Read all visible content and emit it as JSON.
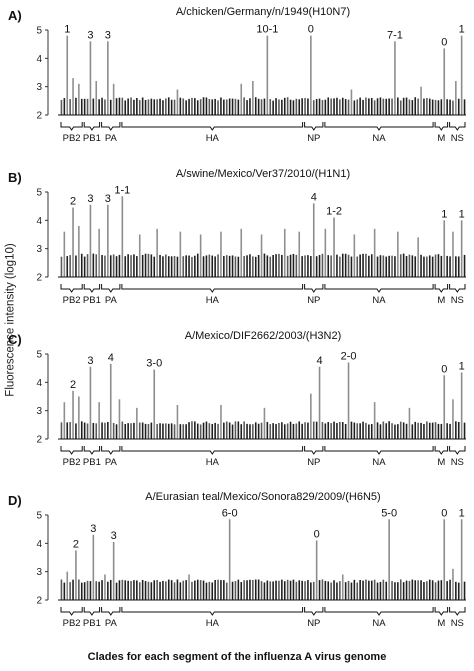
{
  "figure": {
    "ylabel": "Fluorescence intensity (log10)",
    "xlabel": "Clades for each segment of the influenza A virus genome"
  },
  "chart_data": [
    {
      "type": "bar",
      "panel": "A)",
      "title": "A/chicken/Germany/n/1949(H10N7)",
      "ylim": [
        2,
        5
      ],
      "yticks": [
        2,
        3,
        4,
        5
      ],
      "n_bars": 140,
      "baseline_level": 2.55,
      "segments": [
        {
          "label": "PB2",
          "start": 0,
          "end": 8
        },
        {
          "label": "PB1",
          "start": 8,
          "end": 14
        },
        {
          "label": "PA",
          "start": 14,
          "end": 21
        },
        {
          "label": "HA",
          "start": 21,
          "end": 84
        },
        {
          "label": "NP",
          "start": 84,
          "end": 91
        },
        {
          "label": "NA",
          "start": 91,
          "end": 129
        },
        {
          "label": "M",
          "start": 129,
          "end": 134
        },
        {
          "label": "NS",
          "start": 134,
          "end": 140
        }
      ],
      "peaks": [
        {
          "index": 2,
          "value": 4.8,
          "label": "1"
        },
        {
          "index": 10,
          "value": 4.6,
          "label": "3"
        },
        {
          "index": 16,
          "value": 4.6,
          "label": "3"
        },
        {
          "index": 71,
          "value": 4.8,
          "label": "10-1"
        },
        {
          "index": 86,
          "value": 4.8,
          "label": "0"
        },
        {
          "index": 115,
          "value": 4.6,
          "label": "7-1"
        },
        {
          "index": 132,
          "value": 4.35,
          "label": "0"
        },
        {
          "index": 138,
          "value": 4.8,
          "label": "1"
        }
      ],
      "secondary_bars": [
        {
          "index": 4,
          "value": 3.3
        },
        {
          "index": 6,
          "value": 3.1
        },
        {
          "index": 12,
          "value": 3.2
        },
        {
          "index": 18,
          "value": 3.1
        },
        {
          "index": 40,
          "value": 2.9
        },
        {
          "index": 62,
          "value": 3.1
        },
        {
          "index": 66,
          "value": 3.2
        },
        {
          "index": 100,
          "value": 2.9
        },
        {
          "index": 124,
          "value": 3.0
        },
        {
          "index": 136,
          "value": 3.2
        }
      ]
    },
    {
      "type": "bar",
      "panel": "B)",
      "title": "A/swine/Mexico/Ver37/2010/(H1N1)",
      "ylim": [
        2,
        5
      ],
      "yticks": [
        2,
        3,
        4,
        5
      ],
      "n_bars": 140,
      "baseline_level": 2.75,
      "segments": [
        {
          "label": "PB2",
          "start": 0,
          "end": 8
        },
        {
          "label": "PB1",
          "start": 8,
          "end": 14
        },
        {
          "label": "PA",
          "start": 14,
          "end": 21
        },
        {
          "label": "HA",
          "start": 21,
          "end": 84
        },
        {
          "label": "NP",
          "start": 84,
          "end": 91
        },
        {
          "label": "NA",
          "start": 91,
          "end": 129
        },
        {
          "label": "M",
          "start": 129,
          "end": 134
        },
        {
          "label": "NS",
          "start": 134,
          "end": 140
        }
      ],
      "peaks": [
        {
          "index": 4,
          "value": 4.45,
          "label": "2"
        },
        {
          "index": 10,
          "value": 4.55,
          "label": "3"
        },
        {
          "index": 16,
          "value": 4.55,
          "label": "3"
        },
        {
          "index": 21,
          "value": 4.85,
          "label": "1-1"
        },
        {
          "index": 87,
          "value": 4.6,
          "label": "4"
        },
        {
          "index": 94,
          "value": 4.1,
          "label": "1-2"
        },
        {
          "index": 132,
          "value": 4.0,
          "label": "1"
        },
        {
          "index": 138,
          "value": 4.0,
          "label": "1"
        }
      ],
      "secondary_bars": [
        {
          "index": 1,
          "value": 3.6
        },
        {
          "index": 6,
          "value": 3.8
        },
        {
          "index": 13,
          "value": 3.7
        },
        {
          "index": 27,
          "value": 3.5
        },
        {
          "index": 33,
          "value": 3.7
        },
        {
          "index": 41,
          "value": 3.6
        },
        {
          "index": 48,
          "value": 3.5
        },
        {
          "index": 55,
          "value": 3.6
        },
        {
          "index": 62,
          "value": 3.7
        },
        {
          "index": 69,
          "value": 3.5
        },
        {
          "index": 77,
          "value": 3.7
        },
        {
          "index": 82,
          "value": 3.6
        },
        {
          "index": 91,
          "value": 3.7
        },
        {
          "index": 101,
          "value": 3.5
        },
        {
          "index": 108,
          "value": 3.7
        },
        {
          "index": 116,
          "value": 3.6
        },
        {
          "index": 123,
          "value": 3.4
        },
        {
          "index": 135,
          "value": 3.6
        }
      ]
    },
    {
      "type": "bar",
      "panel": "C)",
      "title": "A/Mexico/DIF2662/2003/(H3N2)",
      "ylim": [
        2,
        5
      ],
      "yticks": [
        2,
        3,
        4,
        5
      ],
      "n_bars": 140,
      "baseline_level": 2.55,
      "segments": [
        {
          "label": "PB2",
          "start": 0,
          "end": 8
        },
        {
          "label": "PB1",
          "start": 8,
          "end": 14
        },
        {
          "label": "PA",
          "start": 14,
          "end": 21
        },
        {
          "label": "HA",
          "start": 21,
          "end": 84
        },
        {
          "label": "NP",
          "start": 84,
          "end": 91
        },
        {
          "label": "NA",
          "start": 91,
          "end": 129
        },
        {
          "label": "M",
          "start": 129,
          "end": 134
        },
        {
          "label": "NS",
          "start": 134,
          "end": 140
        }
      ],
      "peaks": [
        {
          "index": 4,
          "value": 3.7,
          "label": "2"
        },
        {
          "index": 10,
          "value": 4.55,
          "label": "3"
        },
        {
          "index": 17,
          "value": 4.65,
          "label": "4"
        },
        {
          "index": 32,
          "value": 4.45,
          "label": "3-0"
        },
        {
          "index": 89,
          "value": 4.55,
          "label": "4"
        },
        {
          "index": 99,
          "value": 4.7,
          "label": "2-0"
        },
        {
          "index": 132,
          "value": 4.25,
          "label": "0"
        },
        {
          "index": 138,
          "value": 4.35,
          "label": "1"
        }
      ],
      "secondary_bars": [
        {
          "index": 1,
          "value": 3.3
        },
        {
          "index": 6,
          "value": 3.5
        },
        {
          "index": 13,
          "value": 3.3
        },
        {
          "index": 20,
          "value": 3.4
        },
        {
          "index": 26,
          "value": 3.1
        },
        {
          "index": 40,
          "value": 3.2
        },
        {
          "index": 55,
          "value": 3.2
        },
        {
          "index": 70,
          "value": 3.1
        },
        {
          "index": 86,
          "value": 3.6
        },
        {
          "index": 108,
          "value": 3.3
        },
        {
          "index": 120,
          "value": 3.1
        },
        {
          "index": 135,
          "value": 3.4
        }
      ]
    },
    {
      "type": "bar",
      "panel": "D)",
      "title": "A/Eurasian teal/Mexico/Sonora829/2009/(H6N5)",
      "ylim": [
        2,
        5
      ],
      "yticks": [
        2,
        3,
        4,
        5
      ],
      "n_bars": 140,
      "baseline_level": 2.65,
      "segments": [
        {
          "label": "PB2",
          "start": 0,
          "end": 8
        },
        {
          "label": "PB1",
          "start": 8,
          "end": 14
        },
        {
          "label": "PA",
          "start": 14,
          "end": 21
        },
        {
          "label": "HA",
          "start": 21,
          "end": 84
        },
        {
          "label": "NP",
          "start": 84,
          "end": 91
        },
        {
          "label": "NA",
          "start": 91,
          "end": 129
        },
        {
          "label": "M",
          "start": 129,
          "end": 134
        },
        {
          "label": "NS",
          "start": 134,
          "end": 140
        }
      ],
      "peaks": [
        {
          "index": 5,
          "value": 3.75,
          "label": "2"
        },
        {
          "index": 11,
          "value": 4.3,
          "label": "3"
        },
        {
          "index": 18,
          "value": 4.05,
          "label": "3"
        },
        {
          "index": 58,
          "value": 4.85,
          "label": "6-0"
        },
        {
          "index": 88,
          "value": 4.1,
          "label": "0"
        },
        {
          "index": 113,
          "value": 4.85,
          "label": "5-0"
        },
        {
          "index": 132,
          "value": 4.85,
          "label": "0"
        },
        {
          "index": 138,
          "value": 4.85,
          "label": "1"
        }
      ],
      "secondary_bars": [
        {
          "index": 2,
          "value": 3.0
        },
        {
          "index": 15,
          "value": 2.9
        },
        {
          "index": 44,
          "value": 2.9
        },
        {
          "index": 97,
          "value": 2.9
        },
        {
          "index": 135,
          "value": 3.1
        }
      ]
    }
  ]
}
